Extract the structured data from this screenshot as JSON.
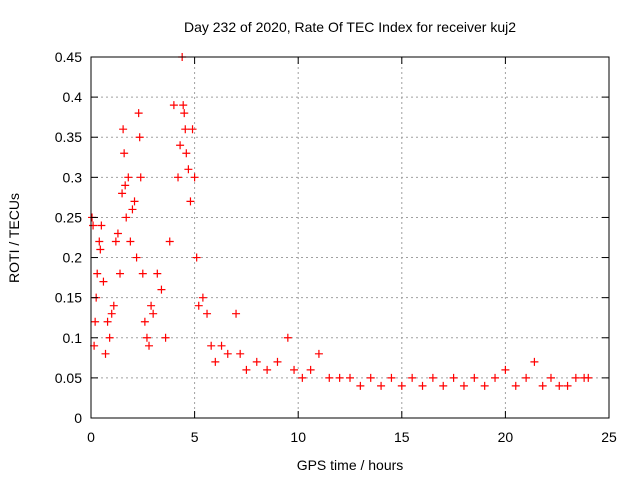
{
  "chart_data": {
    "type": "scatter",
    "title": "Day 232 of 2020, Rate Of TEC Index for receiver kuj2",
    "xlabel": "GPS time / hours",
    "ylabel": "ROTI / TECUs",
    "xlim": [
      0,
      25
    ],
    "ylim": [
      0,
      0.45
    ],
    "x_ticks": [
      "0",
      "5",
      "10",
      "15",
      "20",
      "25"
    ],
    "y_ticks": [
      "0",
      "0.05",
      "0.1",
      "0.15",
      "0.2",
      "0.25",
      "0.3",
      "0.35",
      "0.4",
      "0.45"
    ],
    "grid": true,
    "marker": "+",
    "series": [
      {
        "name": "ROTI",
        "color": "#ff0000",
        "x": [
          0.05,
          0.1,
          0.15,
          0.2,
          0.25,
          0.3,
          0.4,
          0.45,
          0.5,
          0.6,
          0.7,
          0.8,
          0.9,
          1.0,
          1.1,
          1.2,
          1.3,
          1.4,
          1.5,
          1.55,
          1.6,
          1.65,
          1.7,
          1.8,
          1.9,
          2.0,
          2.1,
          2.2,
          2.3,
          2.35,
          2.4,
          2.5,
          2.6,
          2.7,
          2.8,
          2.9,
          3.0,
          3.2,
          3.4,
          3.6,
          3.8,
          4.0,
          4.2,
          4.3,
          4.4,
          4.45,
          4.5,
          4.55,
          4.6,
          4.7,
          4.8,
          4.9,
          5.0,
          5.1,
          5.2,
          5.4,
          5.6,
          5.8,
          6.0,
          6.3,
          6.6,
          7.0,
          7.2,
          7.5,
          8.0,
          8.5,
          9.0,
          9.5,
          9.8,
          10.2,
          10.6,
          11.0,
          11.5,
          12.0,
          12.5,
          13.0,
          13.5,
          14.0,
          14.5,
          15.0,
          15.5,
          16.0,
          16.5,
          17.0,
          17.5,
          18.0,
          18.5,
          19.0,
          19.5,
          20.0,
          20.5,
          21.0,
          21.4,
          21.8,
          22.2,
          22.6,
          23.0,
          23.4,
          23.8,
          24.0
        ],
        "y": [
          0.25,
          0.24,
          0.09,
          0.12,
          0.15,
          0.18,
          0.22,
          0.21,
          0.24,
          0.17,
          0.08,
          0.12,
          0.1,
          0.13,
          0.14,
          0.22,
          0.23,
          0.18,
          0.28,
          0.36,
          0.33,
          0.29,
          0.25,
          0.3,
          0.22,
          0.26,
          0.27,
          0.2,
          0.38,
          0.35,
          0.3,
          0.18,
          0.12,
          0.1,
          0.09,
          0.14,
          0.13,
          0.18,
          0.16,
          0.1,
          0.22,
          0.39,
          0.3,
          0.34,
          0.45,
          0.39,
          0.38,
          0.36,
          0.33,
          0.31,
          0.27,
          0.36,
          0.3,
          0.2,
          0.14,
          0.15,
          0.13,
          0.09,
          0.07,
          0.09,
          0.08,
          0.13,
          0.08,
          0.06,
          0.07,
          0.06,
          0.07,
          0.1,
          0.06,
          0.05,
          0.06,
          0.08,
          0.05,
          0.05,
          0.05,
          0.04,
          0.05,
          0.04,
          0.05,
          0.04,
          0.05,
          0.04,
          0.05,
          0.04,
          0.05,
          0.04,
          0.05,
          0.04,
          0.05,
          0.06,
          0.04,
          0.05,
          0.07,
          0.04,
          0.05,
          0.04,
          0.04,
          0.05,
          0.05,
          0.05
        ]
      }
    ]
  }
}
